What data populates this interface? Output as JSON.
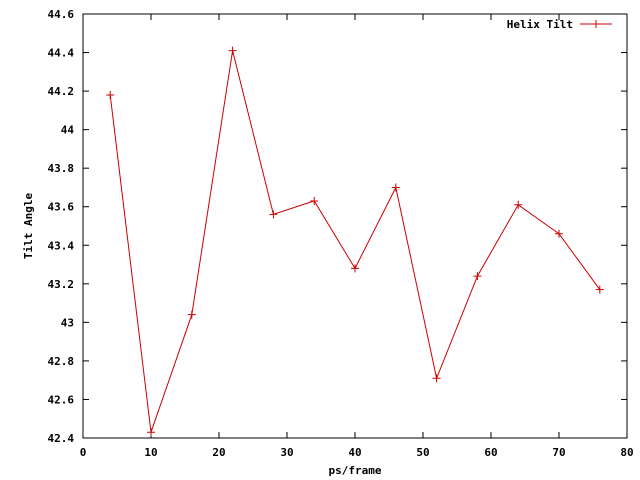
{
  "chart_data": {
    "type": "line",
    "title": "",
    "xlabel": "ps/frame",
    "ylabel": "Tilt Angle",
    "xlim": [
      0,
      80
    ],
    "ylim": [
      42.4,
      44.6
    ],
    "xticks": [
      "0",
      "10",
      "20",
      "30",
      "40",
      "50",
      "60",
      "70",
      "80"
    ],
    "yticks": [
      "42.4",
      "42.6",
      "42.8",
      "43",
      "43.2",
      "43.4",
      "43.6",
      "43.8",
      "44",
      "44.2",
      "44.4",
      "44.6"
    ],
    "grid": false,
    "legend_position": "top-right",
    "series": [
      {
        "name": "Helix Tilt",
        "color": "#cc0000",
        "marker": "plus",
        "x": [
          4,
          10,
          16,
          22,
          28,
          34,
          40,
          46,
          52,
          58,
          64,
          70,
          76
        ],
        "y": [
          44.18,
          42.43,
          43.04,
          44.41,
          43.56,
          43.63,
          43.28,
          43.7,
          42.71,
          43.24,
          43.61,
          43.46,
          43.17
        ]
      }
    ]
  }
}
